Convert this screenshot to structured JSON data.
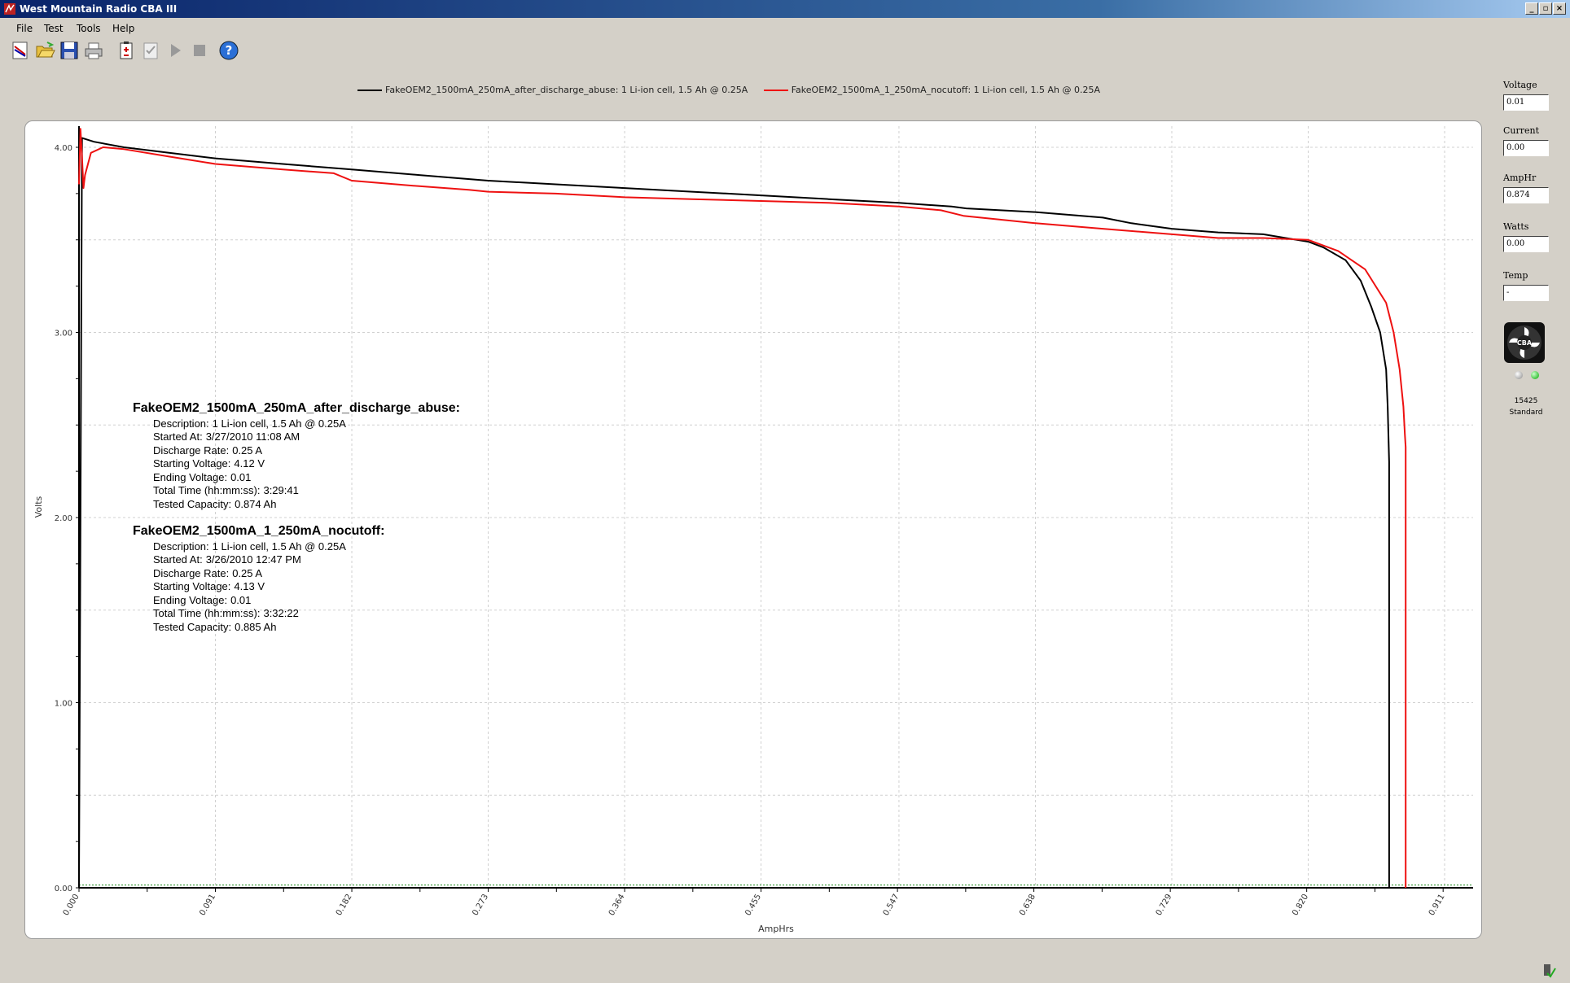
{
  "window": {
    "title": "West Mountain Radio CBA III"
  },
  "menu": [
    "File",
    "Test",
    "Tools",
    "Help"
  ],
  "toolbar": {
    "icons": [
      "new-graph-icon",
      "open-folder-icon",
      "save-disk-icon",
      "print-icon",
      "battery-icon",
      "checklist-icon",
      "play-icon",
      "stop-icon",
      "help-icon"
    ]
  },
  "legend": [
    {
      "label": "FakeOEM2_1500mA_250mA_after_discharge_abuse: 1 Li-ion cell, 1.5 Ah @ 0.25A",
      "color": "#000000"
    },
    {
      "label": "FakeOEM2_1500mA_1_250mA_nocutoff: 1 Li-ion cell, 1.5 Ah @ 0.25A",
      "color": "#ee1111"
    }
  ],
  "info": [
    {
      "header": "FakeOEM2_1500mA_250mA_after_discharge_abuse:",
      "lines": [
        [
          "Description:",
          "1 Li-ion cell, 1.5 Ah @ 0.25A"
        ],
        [
          "Started At:",
          "3/27/2010 11:08 AM"
        ],
        [
          "Discharge Rate:",
          "0.25 A"
        ],
        [
          "Starting Voltage:",
          "4.12 V"
        ],
        [
          "Ending Voltage:",
          "0.01"
        ],
        [
          "Total Time (hh:mm:ss):",
          "3:29:41"
        ],
        [
          "Tested Capacity:",
          "0.874 Ah"
        ]
      ]
    },
    {
      "header": "FakeOEM2_1500mA_1_250mA_nocutoff:",
      "lines": [
        [
          "Description:",
          "1 Li-ion cell, 1.5 Ah @ 0.25A"
        ],
        [
          "Started At:",
          "3/26/2010 12:47 PM"
        ],
        [
          "Discharge Rate:",
          "0.25 A"
        ],
        [
          "Starting Voltage:",
          "4.13 V"
        ],
        [
          "Ending Voltage:",
          "0.01"
        ],
        [
          "Total Time (hh:mm:ss):",
          "3:32:22"
        ],
        [
          "Tested Capacity:",
          "0.885 Ah"
        ]
      ]
    }
  ],
  "readouts": {
    "voltage": {
      "label": "Voltage",
      "value": "0.01"
    },
    "current": {
      "label": "Current",
      "value": "0.00"
    },
    "amphr": {
      "label": "AmpHr",
      "value": "0.874"
    },
    "watts": {
      "label": "Watts",
      "value": "0.00"
    },
    "temp": {
      "label": "Temp",
      "value": "-"
    }
  },
  "device": {
    "logo_text": "CBA",
    "serial": "15425",
    "model": "Standard"
  },
  "chart_data": {
    "type": "line",
    "xlabel": "AmpHrs",
    "ylabel": "Volts",
    "xlim": [
      0,
      0.93
    ],
    "ylim": [
      0,
      4.12
    ],
    "x_ticks": [
      "0.000",
      "0.091",
      "0.182",
      "0.273",
      "0.364",
      "0.455",
      "0.547",
      "0.638",
      "0.729",
      "0.820",
      "0.911"
    ],
    "y_ticks": [
      "0.00",
      "1.00",
      "2.00",
      "3.00",
      "4.00"
    ],
    "grid": true,
    "legend_position": "top",
    "series": [
      {
        "name": "FakeOEM2_1500mA_250mA_after_discharge_abuse: 1 Li-ion cell, 1.5 Ah @ 0.25A",
        "color": "#000000",
        "x": [
          0,
          0.002,
          0.01,
          0.03,
          0.06,
          0.091,
          0.136,
          0.182,
          0.227,
          0.273,
          0.318,
          0.364,
          0.409,
          0.455,
          0.5,
          0.547,
          0.582,
          0.592,
          0.638,
          0.683,
          0.702,
          0.729,
          0.76,
          0.79,
          0.805,
          0.82,
          0.83,
          0.845,
          0.855,
          0.862,
          0.868,
          0.872,
          0.873,
          0.8735,
          0.874,
          0.874,
          0.874
        ],
        "y": [
          0.01,
          4.05,
          4.03,
          4.0,
          3.97,
          3.94,
          3.91,
          3.88,
          3.85,
          3.82,
          3.8,
          3.78,
          3.76,
          3.74,
          3.72,
          3.7,
          3.68,
          3.67,
          3.65,
          3.62,
          3.59,
          3.56,
          3.54,
          3.53,
          3.51,
          3.49,
          3.46,
          3.39,
          3.28,
          3.14,
          3.0,
          2.8,
          2.6,
          2.45,
          2.3,
          0.5,
          0.0
        ]
      },
      {
        "name": "FakeOEM2_1500mA_1_250mA_nocutoff: 1 Li-ion cell, 1.5 Ah @ 0.25A",
        "color": "#ee1111",
        "x": [
          0,
          0.001,
          0.002,
          0.003,
          0.004,
          0.008,
          0.016,
          0.03,
          0.06,
          0.091,
          0.136,
          0.17,
          0.182,
          0.227,
          0.26,
          0.273,
          0.318,
          0.364,
          0.409,
          0.455,
          0.5,
          0.547,
          0.575,
          0.59,
          0.638,
          0.683,
          0.729,
          0.76,
          0.79,
          0.82,
          0.84,
          0.858,
          0.872,
          0.877,
          0.881,
          0.8835,
          0.8845,
          0.885,
          0.885,
          0.885
        ],
        "y": [
          3.8,
          4.1,
          3.95,
          3.78,
          3.85,
          3.97,
          4.0,
          3.99,
          3.95,
          3.91,
          3.88,
          3.86,
          3.82,
          3.79,
          3.77,
          3.76,
          3.75,
          3.73,
          3.72,
          3.71,
          3.7,
          3.68,
          3.66,
          3.63,
          3.59,
          3.56,
          3.53,
          3.51,
          3.51,
          3.5,
          3.44,
          3.34,
          3.16,
          3.0,
          2.8,
          2.6,
          2.45,
          2.38,
          0.5,
          0.0
        ]
      }
    ]
  }
}
